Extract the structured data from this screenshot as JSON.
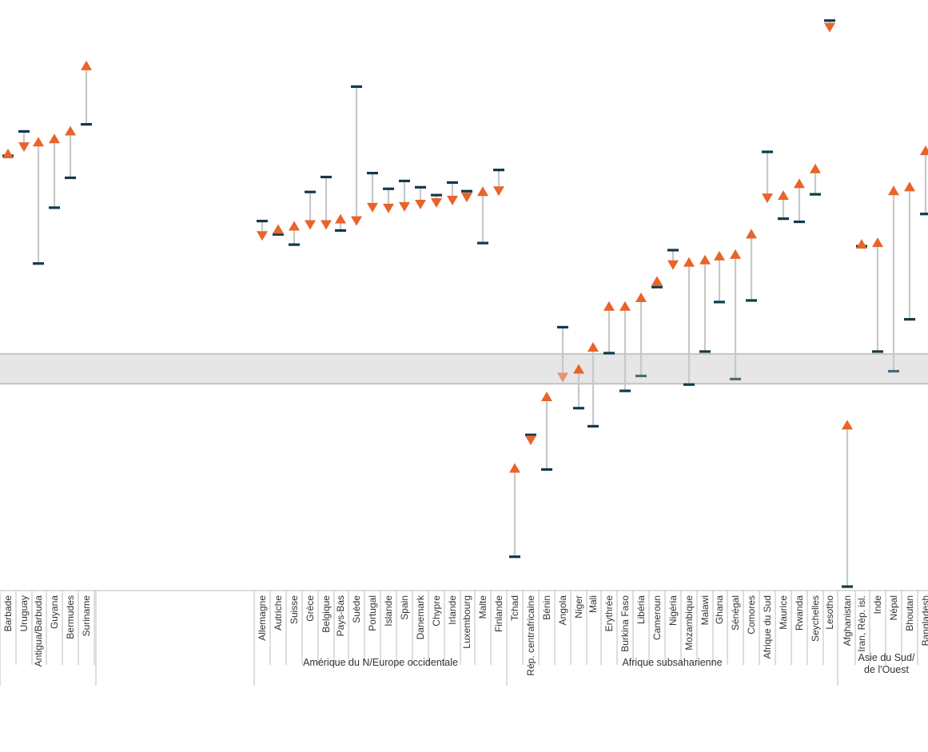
{
  "chart_data": {
    "type": "dumbbell",
    "title": "",
    "xlabel": "",
    "ylabel": "",
    "y_range": [
      0,
      740
    ],
    "reference_band": [
      262,
      300
    ],
    "grid": false,
    "colors": {
      "increase": "#e8642a",
      "decrease": "#e8642a",
      "decrease_in_band": "#e89272",
      "start_marker": "#12394b",
      "start_marker_in_band": "#4d6a7a",
      "connector": "#c8c8c8",
      "band_fill": "#e6e6e6",
      "band_edge": "#c4c4c4",
      "axis": "#bdbdbd"
    },
    "countries": [
      {
        "name": "Barbade",
        "start": 552,
        "end": 555
      },
      {
        "name": "Uruguay",
        "start": 583,
        "end": 563
      },
      {
        "name": "Antigua/Barbuda",
        "start": 415,
        "end": 570
      },
      {
        "name": "Guyana",
        "start": 486,
        "end": 574
      },
      {
        "name": "Bermudes",
        "start": 524,
        "end": 584
      },
      {
        "name": "Suriname",
        "start": 592,
        "end": 667
      },
      {
        "name": "Allemagne",
        "start": 469,
        "end": 450
      },
      {
        "name": "Autriche",
        "start": 452,
        "end": 459
      },
      {
        "name": "Suisse",
        "start": 439,
        "end": 463
      },
      {
        "name": "Grèce",
        "start": 506,
        "end": 464
      },
      {
        "name": "Belgique",
        "start": 525,
        "end": 464
      },
      {
        "name": "Pays-Bas",
        "start": 457,
        "end": 472
      },
      {
        "name": "Suède",
        "start": 640,
        "end": 469
      },
      {
        "name": "Portugal",
        "start": 530,
        "end": 486
      },
      {
        "name": "Islande",
        "start": 510,
        "end": 485
      },
      {
        "name": "Spain",
        "start": 520,
        "end": 487
      },
      {
        "name": "Danemark",
        "start": 512,
        "end": 490
      },
      {
        "name": "Chypre",
        "start": 502,
        "end": 492
      },
      {
        "name": "Irlande",
        "start": 518,
        "end": 495
      },
      {
        "name": "Luxembourg",
        "start": 507,
        "end": 499
      },
      {
        "name": "Malte",
        "start": 441,
        "end": 507
      },
      {
        "name": "Finlande",
        "start": 534,
        "end": 507
      },
      {
        "name": "Tchad",
        "start": 42,
        "end": 155
      },
      {
        "name": "Rép. centrafricaine",
        "start": 197,
        "end": 190
      },
      {
        "name": "Bénin",
        "start": 153,
        "end": 246
      },
      {
        "name": "Angola",
        "start": 334,
        "end": 270
      },
      {
        "name": "Niger",
        "start": 231,
        "end": 281
      },
      {
        "name": "Mali",
        "start": 208,
        "end": 309
      },
      {
        "name": "Erythrée",
        "start": 301,
        "end": 361
      },
      {
        "name": "Burkina Faso",
        "start": 253,
        "end": 361
      },
      {
        "name": "Libéria",
        "start": 272,
        "end": 372
      },
      {
        "name": "Cameroun",
        "start": 385,
        "end": 393
      },
      {
        "name": "Nigéria",
        "start": 432,
        "end": 413
      },
      {
        "name": "Mozambique",
        "start": 261,
        "end": 417
      },
      {
        "name": "Malawi",
        "start": 303,
        "end": 420
      },
      {
        "name": "Ghana",
        "start": 366,
        "end": 425
      },
      {
        "name": "Sénégal",
        "start": 268,
        "end": 427
      },
      {
        "name": "Comores",
        "start": 368,
        "end": 453
      },
      {
        "name": "Afrique du Sud",
        "start": 557,
        "end": 498
      },
      {
        "name": "Maurice",
        "start": 472,
        "end": 502
      },
      {
        "name": "Rwanda",
        "start": 468,
        "end": 517
      },
      {
        "name": "Seychelles",
        "start": 503,
        "end": 536
      },
      {
        "name": "Lesotho",
        "start": 724,
        "end": 715
      },
      {
        "name": "Afghanistan",
        "start": 4,
        "end": 210
      },
      {
        "name": "Iran, Rép. isl.",
        "start": 437,
        "end": 440
      },
      {
        "name": "Inde",
        "start": 303,
        "end": 442
      },
      {
        "name": "Népal",
        "start": 278,
        "end": 508
      },
      {
        "name": "Bhoutan",
        "start": 344,
        "end": 513
      },
      {
        "name": "Bangladesh",
        "start": 478,
        "end": 559
      }
    ],
    "regions": [
      {
        "label_lines": [
          "Amérique du N/Europe occidentale"
        ],
        "from": "Allemagne",
        "to": "Finlande"
      },
      {
        "label_lines": [
          "Afrique subsaharienne"
        ],
        "from": "Tchad",
        "to": "Lesotho"
      },
      {
        "label_lines": [
          "Asie du Sud/",
          "de l'Ouest"
        ],
        "from": "Afghanistan",
        "to": "Bangladesh"
      }
    ]
  }
}
